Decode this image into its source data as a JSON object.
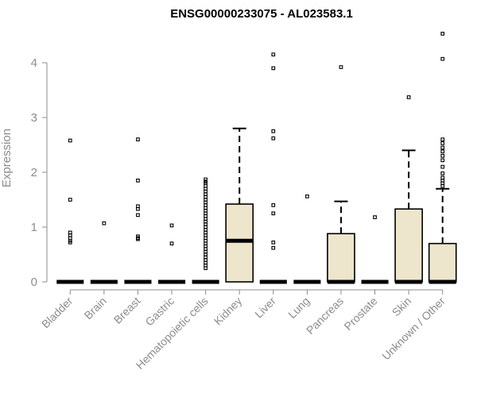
{
  "chart_data": {
    "type": "box",
    "title": "ENSG00000233075 - AL023583.1",
    "xlabel": "",
    "ylabel": "Expression",
    "ylim": [
      0,
      4.6
    ],
    "yticks": [
      0,
      1,
      2,
      3,
      4
    ],
    "grid": false,
    "colors": {
      "box_fill": "#ede6cc",
      "box_stroke": "#000000",
      "axis": "#8c8c8c",
      "tick_label": "#8c8c8c"
    },
    "categories": [
      "Bladder",
      "Brain",
      "Breast",
      "Gastric",
      "Hematopoietic cells",
      "Kidney",
      "Liver",
      "Lung",
      "Pancreas",
      "Prostate",
      "Skin",
      "Unknown / Other"
    ],
    "boxes": [
      {
        "category": "Bladder",
        "q1": 0,
        "median": 0,
        "q3": 0,
        "whisker_low": 0,
        "whisker_high": 0,
        "outliers": [
          2.58,
          1.5,
          0.9,
          0.85,
          0.8,
          0.75,
          0.72
        ]
      },
      {
        "category": "Brain",
        "q1": 0,
        "median": 0,
        "q3": 0,
        "whisker_low": 0,
        "whisker_high": 0,
        "outliers": [
          1.07
        ]
      },
      {
        "category": "Breast",
        "q1": 0,
        "median": 0,
        "q3": 0,
        "whisker_low": 0,
        "whisker_high": 0,
        "outliers": [
          2.6,
          1.85,
          1.38,
          1.33,
          1.22,
          0.83,
          0.8,
          0.78
        ]
      },
      {
        "category": "Gastric",
        "q1": 0,
        "median": 0,
        "q3": 0,
        "whisker_low": 0,
        "whisker_high": 0,
        "outliers": [
          1.03,
          0.7
        ]
      },
      {
        "category": "Hematopoietic cells",
        "q1": 0,
        "median": 0,
        "q3": 0,
        "whisker_low": 0,
        "whisker_high": 0,
        "outliers": [
          1.87,
          1.83,
          1.8,
          1.75,
          1.7,
          1.65,
          1.6,
          1.55,
          1.5,
          1.45,
          1.4,
          1.35,
          1.3,
          1.25,
          1.2,
          1.15,
          1.1,
          1.05,
          1.0,
          0.95,
          0.9,
          0.85,
          0.8,
          0.75,
          0.7,
          0.65,
          0.6,
          0.55,
          0.5,
          0.45,
          0.4,
          0.35,
          0.3,
          0.25
        ]
      },
      {
        "category": "Kidney",
        "q1": 0,
        "median": 0.75,
        "q3": 1.42,
        "whisker_low": 0,
        "whisker_high": 2.8,
        "outliers": []
      },
      {
        "category": "Liver",
        "q1": 0,
        "median": 0,
        "q3": 0,
        "whisker_low": 0,
        "whisker_high": 0,
        "outliers": [
          4.15,
          3.9,
          2.75,
          2.62,
          1.4,
          1.25,
          0.72,
          0.62
        ]
      },
      {
        "category": "Lung",
        "q1": 0,
        "median": 0,
        "q3": 0,
        "whisker_low": 0,
        "whisker_high": 0,
        "outliers": [
          1.56
        ]
      },
      {
        "category": "Pancreas",
        "q1": 0,
        "median": 0,
        "q3": 0.88,
        "whisker_low": 0,
        "whisker_high": 1.47,
        "outliers": [
          3.92
        ]
      },
      {
        "category": "Prostate",
        "q1": 0,
        "median": 0,
        "q3": 0,
        "whisker_low": 0,
        "whisker_high": 0,
        "outliers": [
          1.18
        ]
      },
      {
        "category": "Skin",
        "q1": 0,
        "median": 0,
        "q3": 1.33,
        "whisker_low": 0,
        "whisker_high": 2.4,
        "outliers": [
          3.37
        ]
      },
      {
        "category": "Unknown / Other",
        "q1": 0,
        "median": 0,
        "q3": 0.7,
        "whisker_low": 0,
        "whisker_high": 1.7,
        "outliers": [
          4.53,
          4.07,
          2.6,
          2.53,
          2.45,
          2.38,
          2.3,
          2.22,
          2.1,
          1.98,
          1.9,
          1.85,
          1.8,
          1.75
        ]
      }
    ]
  }
}
